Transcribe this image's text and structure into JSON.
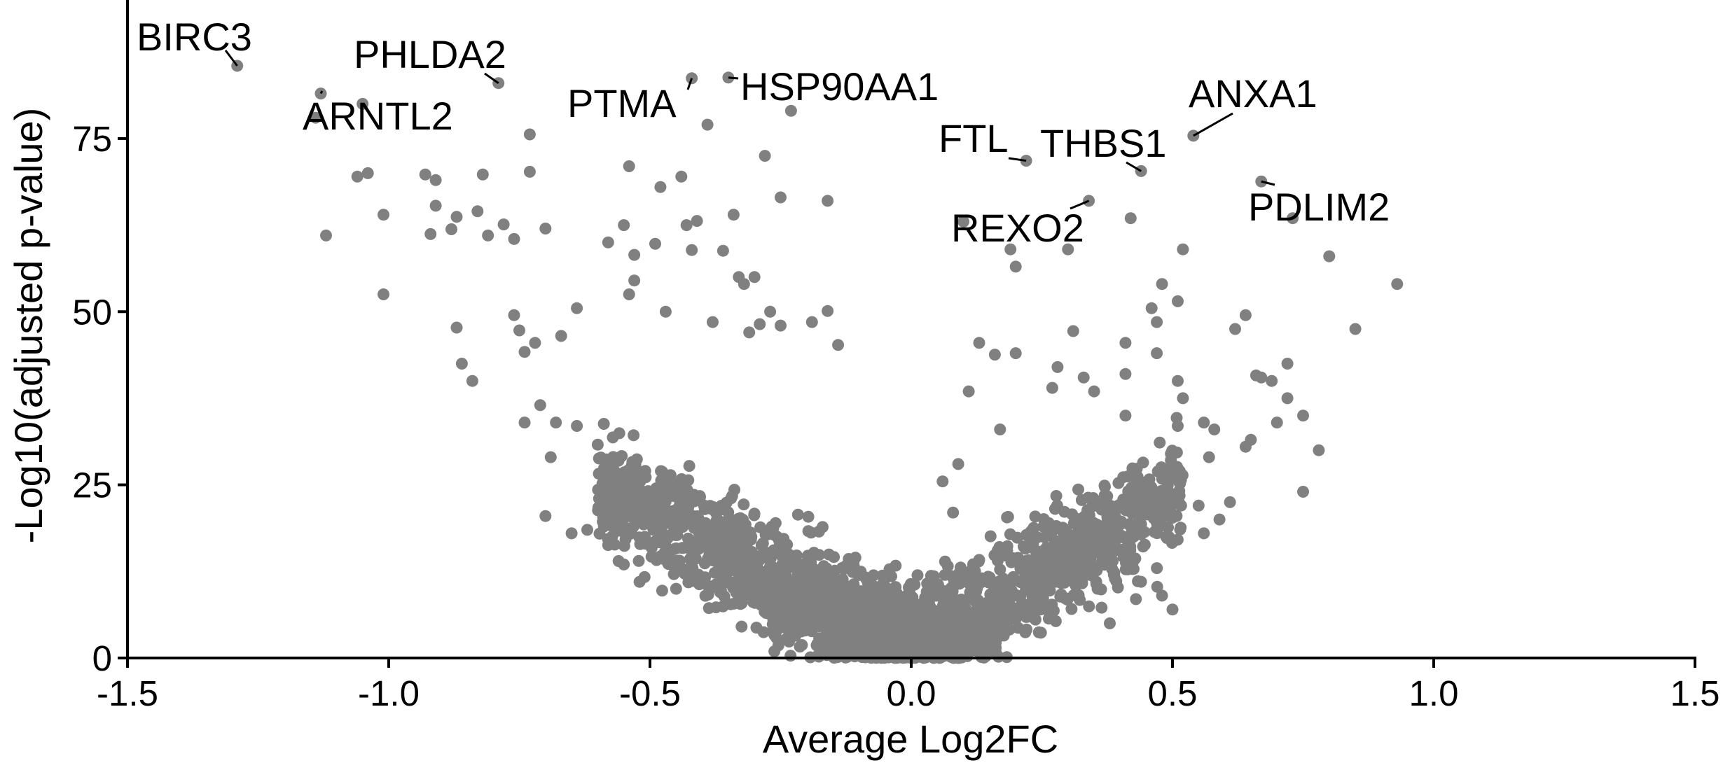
{
  "chart_data": {
    "type": "scatter",
    "title": "",
    "xlabel": "Average Log2FC",
    "ylabel": "-Log10(adjusted p-value)",
    "xlim": [
      -1.5,
      1.5
    ],
    "ylim": [
      0,
      95
    ],
    "xticks": [
      -1.5,
      -1.0,
      -0.5,
      0.0,
      0.5,
      1.0,
      1.5
    ],
    "xtick_labels": [
      "-1.5",
      "-1.0",
      "-0.5",
      "0.0",
      "0.5",
      "1.0",
      "1.5"
    ],
    "yticks": [
      0,
      25,
      50,
      75
    ],
    "ytick_labels": [
      "0",
      "25",
      "50",
      "75"
    ],
    "grid": false,
    "point_color": "#808080",
    "labeled_genes": [
      {
        "name": "BIRC3",
        "x": -1.29,
        "y": 85.5
      },
      {
        "name": "PHLDA2",
        "x": -0.79,
        "y": 83.0
      },
      {
        "name": "ARNTL2",
        "x": -1.13,
        "y": 81.5
      },
      {
        "name": "PTMA",
        "x": -0.42,
        "y": 83.7
      },
      {
        "name": "HSP90AA1",
        "x": -0.35,
        "y": 83.8
      },
      {
        "name": "FTL",
        "x": 0.22,
        "y": 71.8
      },
      {
        "name": "THBS1",
        "x": 0.44,
        "y": 70.3
      },
      {
        "name": "ANXA1",
        "x": 0.54,
        "y": 75.4
      },
      {
        "name": "REXO2",
        "x": 0.34,
        "y": 66.0
      },
      {
        "name": "PDLIM2",
        "x": 0.67,
        "y": 68.8
      }
    ],
    "highlight_points": [
      [
        -1.12,
        61.0
      ],
      [
        -1.14,
        78.0
      ],
      [
        -1.05,
        80.0
      ],
      [
        -1.06,
        69.5
      ],
      [
        -1.04,
        70.0
      ],
      [
        -1.01,
        64.0
      ],
      [
        -1.01,
        52.5
      ],
      [
        -0.93,
        69.8
      ],
      [
        -0.91,
        69.0
      ],
      [
        -0.91,
        65.3
      ],
      [
        -0.92,
        61.2
      ],
      [
        -0.88,
        61.9
      ],
      [
        -0.87,
        63.7
      ],
      [
        -0.83,
        64.5
      ],
      [
        -0.82,
        69.8
      ],
      [
        -0.81,
        61.0
      ],
      [
        -0.78,
        62.6
      ],
      [
        -0.76,
        60.5
      ],
      [
        -0.73,
        75.6
      ],
      [
        -0.73,
        70.2
      ],
      [
        -0.7,
        62.0
      ],
      [
        -0.87,
        47.7
      ],
      [
        -0.86,
        42.5
      ],
      [
        -0.84,
        40.0
      ],
      [
        -0.76,
        49.5
      ],
      [
        -0.75,
        47.3
      ],
      [
        -0.74,
        44.2
      ],
      [
        -0.72,
        45.5
      ],
      [
        -0.67,
        46.5
      ],
      [
        -0.64,
        50.5
      ],
      [
        -0.58,
        60.0
      ],
      [
        -0.54,
        71.0
      ],
      [
        -0.55,
        62.5
      ],
      [
        -0.53,
        58.2
      ],
      [
        -0.53,
        54.5
      ],
      [
        -0.54,
        52.5
      ],
      [
        -0.48,
        68.0
      ],
      [
        -0.49,
        59.8
      ],
      [
        -0.44,
        69.5
      ],
      [
        -0.43,
        62.5
      ],
      [
        -0.42,
        58.9
      ],
      [
        -0.41,
        63.1
      ],
      [
        -0.39,
        77.0
      ],
      [
        -0.36,
        58.8
      ],
      [
        -0.34,
        64.0
      ],
      [
        -0.33,
        55.0
      ],
      [
        -0.32,
        54.0
      ],
      [
        -0.3,
        55.0
      ],
      [
        -0.28,
        72.5
      ],
      [
        -0.25,
        66.5
      ],
      [
        -0.23,
        79.0
      ],
      [
        -0.16,
        66.0
      ],
      [
        -0.31,
        47.0
      ],
      [
        -0.29,
        48.2
      ],
      [
        -0.27,
        50.0
      ],
      [
        -0.25,
        48.0
      ],
      [
        -0.19,
        48.5
      ],
      [
        -0.16,
        50.1
      ],
      [
        -0.14,
        45.2
      ],
      [
        -0.38,
        48.5
      ],
      [
        -0.47,
        50.0
      ],
      [
        -0.68,
        34.0
      ],
      [
        -0.64,
        33.5
      ],
      [
        -0.62,
        18.5
      ],
      [
        -0.58,
        16.3
      ],
      [
        -0.56,
        14.0
      ],
      [
        -0.55,
        13.5
      ],
      [
        -0.65,
        18.0
      ],
      [
        -0.7,
        20.5
      ],
      [
        -0.71,
        36.5
      ],
      [
        -0.74,
        34.0
      ],
      [
        -0.69,
        29.0
      ],
      [
        -0.45,
        10.0
      ],
      [
        -0.52,
        11.0
      ],
      [
        0.13,
        45.5
      ],
      [
        0.16,
        43.8
      ],
      [
        0.17,
        33.0
      ],
      [
        0.2,
        44.0
      ],
      [
        0.19,
        59.0
      ],
      [
        0.2,
        56.5
      ],
      [
        0.3,
        59.0
      ],
      [
        0.31,
        47.2
      ],
      [
        0.35,
        38.5
      ],
      [
        0.33,
        40.5
      ],
      [
        0.28,
        42.0
      ],
      [
        0.27,
        39.0
      ],
      [
        0.42,
        63.5
      ],
      [
        0.41,
        45.5
      ],
      [
        0.41,
        41.0
      ],
      [
        0.41,
        35.0
      ],
      [
        0.46,
        50.5
      ],
      [
        0.47,
        48.5
      ],
      [
        0.47,
        44.0
      ],
      [
        0.48,
        54.0
      ],
      [
        0.51,
        51.5
      ],
      [
        0.52,
        59.0
      ],
      [
        0.51,
        40.0
      ],
      [
        0.52,
        37.5
      ],
      [
        0.51,
        33.5
      ],
      [
        0.56,
        34.0
      ],
      [
        0.57,
        29.0
      ],
      [
        0.58,
        33.0
      ],
      [
        0.64,
        49.5
      ],
      [
        0.62,
        47.5
      ],
      [
        0.66,
        40.8
      ],
      [
        0.67,
        40.5
      ],
      [
        0.69,
        40.0
      ],
      [
        0.7,
        34.0
      ],
      [
        0.72,
        42.5
      ],
      [
        0.72,
        37.5
      ],
      [
        0.73,
        63.5
      ],
      [
        0.75,
        35.0
      ],
      [
        0.75,
        24.0
      ],
      [
        0.78,
        30.0
      ],
      [
        0.8,
        58.0
      ],
      [
        0.85,
        47.5
      ],
      [
        0.93,
        54.0
      ],
      [
        0.65,
        31.5
      ],
      [
        0.64,
        30.5
      ],
      [
        0.61,
        22.5
      ],
      [
        0.59,
        20.0
      ],
      [
        0.56,
        18.0
      ],
      [
        0.55,
        22.0
      ],
      [
        0.1,
        63.0
      ],
      [
        0.11,
        38.5
      ],
      [
        0.09,
        28.0
      ],
      [
        0.06,
        25.5
      ],
      [
        0.08,
        21.0
      ],
      [
        0.48,
        9.0
      ],
      [
        0.5,
        7.0
      ],
      [
        0.43,
        8.5
      ],
      [
        0.38,
        5.0
      ]
    ],
    "cloud_params": {
      "left_slope": 40,
      "right_slope": 45,
      "point_count": 2400
    }
  }
}
